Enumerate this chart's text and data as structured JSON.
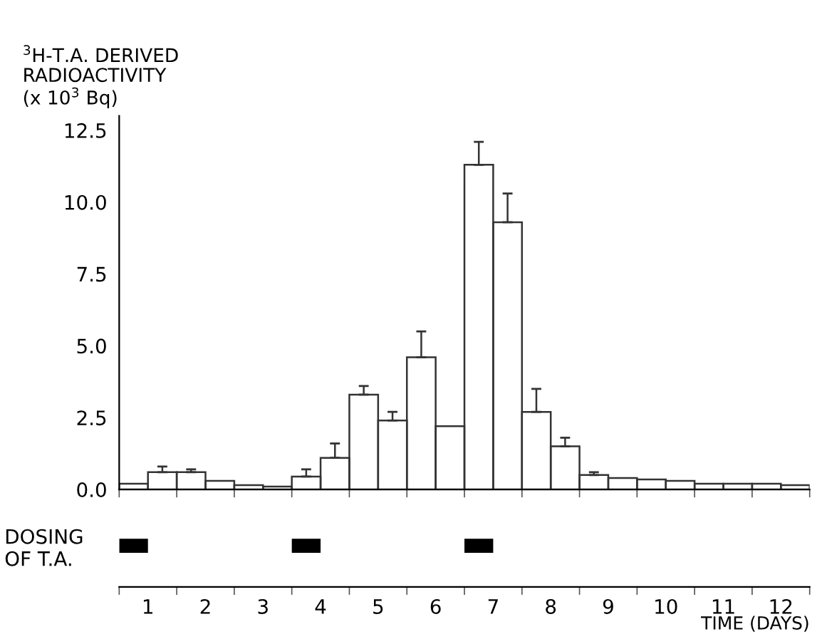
{
  "chart_data": [
    {
      "type": "histogram",
      "ylabel": "$^{3}$H-T.A. DERIVED\nRADIOACTIVITY\n(x 10$^{3}$ Bq)",
      "bins": [
        0.5,
        1.0,
        1.5,
        2.0,
        2.5,
        3.0,
        3.5,
        4.0,
        4.5,
        5.0,
        5.5,
        6.0,
        6.5,
        7.0,
        7.5,
        8.0,
        8.5,
        9.0,
        9.5,
        10.0,
        10.5,
        11.0,
        11.5,
        12.0,
        12.5
      ],
      "values": [
        0.2,
        0.6,
        0.6,
        0.3,
        0.15,
        0.1,
        0.45,
        1.1,
        3.3,
        2.4,
        4.6,
        2.2,
        11.3,
        9.3,
        2.7,
        1.5,
        0.5,
        0.4,
        0.35,
        0.3,
        0.2,
        0.2,
        0.2,
        0.15
      ],
      "errors": [
        null,
        [
          0.6,
          0.8
        ],
        [
          0.6,
          0.7
        ],
        null,
        null,
        null,
        [
          0.45,
          0.7
        ],
        [
          1.1,
          1.6
        ],
        [
          3.3,
          3.6
        ],
        [
          2.4,
          2.7
        ],
        [
          4.6,
          5.5
        ],
        null,
        [
          11.3,
          12.1
        ],
        [
          9.3,
          10.3
        ],
        [
          2.7,
          3.5
        ],
        [
          1.5,
          1.8
        ],
        [
          0.5,
          0.6
        ],
        null,
        null,
        null,
        null,
        null,
        null,
        null
      ],
      "color": "#333333",
      "xlim": [
        0.5,
        12.5
      ],
      "ylim": [
        0,
        13
      ],
      "yticks": [
        {
          "value": 0,
          "label": "0.0"
        },
        2.5,
        {
          "value": 5,
          "label": "5.0"
        },
        7.5,
        {
          "value": 10,
          "label": "10.0"
        },
        12.5
      ],
      "xticks": [
        {
          "value": 0.5,
          "label": null
        },
        {
          "value": 1.5,
          "label": null
        },
        {
          "value": 2.5,
          "label": null
        },
        {
          "value": 3.5,
          "label": null
        },
        {
          "value": 4.5,
          "label": null
        },
        {
          "value": 5.5,
          "label": null
        },
        {
          "value": 6.5,
          "label": null
        },
        {
          "value": 7.5,
          "label": null
        },
        {
          "value": 8.5,
          "label": null
        },
        {
          "value": 9.5,
          "label": null
        },
        {
          "value": 10.5,
          "label": null
        },
        {
          "value": 11.5,
          "label": null
        },
        {
          "value": 12.5,
          "label": null
        }
      ],
      "tick_labels": "y"
    },
    {
      "type": "bar",
      "orientation": "horizontal",
      "xlabel": "TIME (DAYS)",
      "categories": [
        "DOSING\nOF T.A."
      ],
      "series": [
        {
          "color": "#000000",
          "values": [
            0.5
          ],
          "base": [
            0.5
          ]
        },
        {
          "color": "#000000",
          "values": [
            0.5
          ],
          "base": [
            3.5
          ]
        },
        {
          "color": "#000000",
          "values": [
            0.5
          ],
          "base": [
            6.5
          ]
        }
      ],
      "xlim": [
        0.5,
        12.5
      ],
      "xticks": [
        1,
        2,
        3,
        4,
        5,
        6,
        7,
        8,
        9,
        10,
        11,
        12,
        {
          "value": 0.5,
          "label": null
        },
        {
          "value": 1.5,
          "label": null
        },
        {
          "value": 2.5,
          "label": null
        },
        {
          "value": 3.5,
          "label": null
        },
        {
          "value": 4.5,
          "label": null
        },
        {
          "value": 5.5,
          "label": null
        },
        {
          "value": 6.5,
          "label": null
        },
        {
          "value": 7.5,
          "label": null
        },
        {
          "value": 8.5,
          "label": null
        },
        {
          "value": 9.5,
          "label": null
        },
        {
          "value": 10.5,
          "label": null
        },
        {
          "value": 11.5,
          "label": null
        },
        {
          "value": 12.5,
          "label": null
        }
      ]
    }
  ]
}
